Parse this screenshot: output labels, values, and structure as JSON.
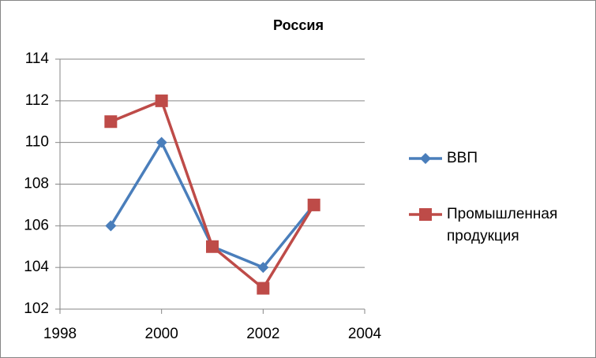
{
  "chart_data": {
    "type": "line",
    "title": "Россия",
    "x": [
      1999,
      2000,
      2001,
      2002,
      2003
    ],
    "series": [
      {
        "name": "ВВП",
        "color": "#4a7ebb",
        "marker": "diamond",
        "values": [
          106,
          110,
          105,
          104,
          107
        ]
      },
      {
        "name": "Промышленная продукция",
        "color": "#be4b48",
        "marker": "square",
        "values": [
          111,
          112,
          105,
          103,
          107
        ]
      }
    ],
    "xlim": [
      1998,
      2004
    ],
    "xticks": [
      1998,
      2000,
      2002,
      2004
    ],
    "ylim": [
      102,
      114
    ],
    "yticks": [
      102,
      104,
      106,
      108,
      110,
      112,
      114
    ],
    "grid": true,
    "legend": "right"
  }
}
